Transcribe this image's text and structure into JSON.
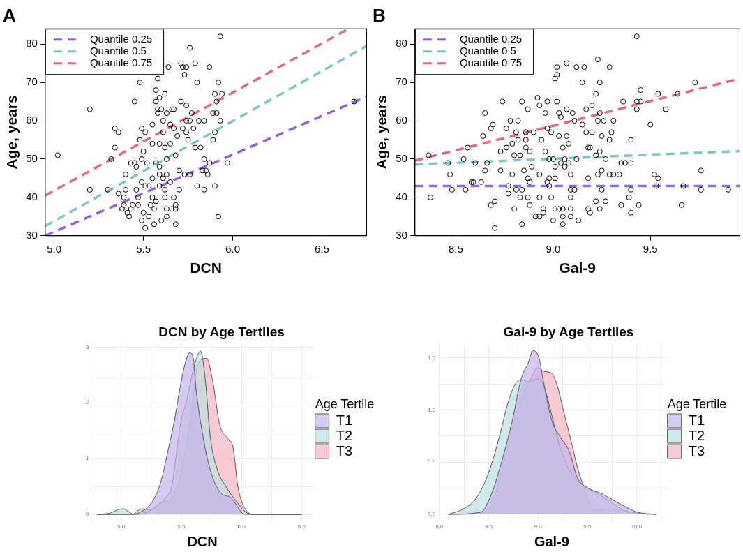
{
  "chart_data": [
    {
      "type": "scatter",
      "title": "A",
      "xlabel": "DCN",
      "ylabel": "Age, years",
      "xlim": [
        4.95,
        6.75
      ],
      "ylim": [
        30,
        84
      ],
      "xticks": [
        {
          "value": 5,
          "label": "5.0"
        },
        5.5,
        {
          "value": 6,
          "label": "6.0"
        },
        6.5
      ],
      "yticks": [
        30,
        40,
        50,
        60,
        70,
        80
      ],
      "legend": "top left",
      "series": [
        {
          "type": "scatter",
          "color": "#000000",
          "marker": "circle",
          "x": [
            5.02,
            5.2,
            5.2,
            5.3,
            5.32,
            5.34,
            5.36,
            5.34,
            5.36,
            5.39,
            5.38,
            5.39,
            5.4,
            5.41,
            5.42,
            5.43,
            5.4,
            5.43,
            5.44,
            5.45,
            5.45,
            5.46,
            5.46,
            5.47,
            5.47,
            5.48,
            5.48,
            5.49,
            5.49,
            5.49,
            5.49,
            5.5,
            5.5,
            5.51,
            5.51,
            5.51,
            5.52,
            5.53,
            5.53,
            5.54,
            5.55,
            5.55,
            5.55,
            5.55,
            5.56,
            5.56,
            5.57,
            5.57,
            5.57,
            5.57,
            5.58,
            5.58,
            5.58,
            5.59,
            5.59,
            5.59,
            5.59,
            5.59,
            5.6,
            5.6,
            5.6,
            5.61,
            5.61,
            5.61,
            5.62,
            5.62,
            5.62,
            5.62,
            5.63,
            5.63,
            5.63,
            5.63,
            5.63,
            5.64,
            5.65,
            5.65,
            5.65,
            5.66,
            5.66,
            5.67,
            5.67,
            5.67,
            5.68,
            5.68,
            5.68,
            5.68,
            5.69,
            5.7,
            5.7,
            5.71,
            5.71,
            5.72,
            5.72,
            5.73,
            5.73,
            5.74,
            5.74,
            5.74,
            5.74,
            5.75,
            5.76,
            5.76,
            5.76,
            5.77,
            5.78,
            5.79,
            5.79,
            5.8,
            5.8,
            5.81,
            5.82,
            5.83,
            5.84,
            5.84,
            5.84,
            5.85,
            5.86,
            5.87,
            5.87,
            5.89,
            5.89,
            5.9,
            5.9,
            5.9,
            5.91,
            5.91,
            5.92,
            5.92,
            5.93,
            5.93,
            5.94,
            5.97,
            6.68
          ],
          "values": [
            51,
            63,
            42,
            42,
            50,
            58,
            57,
            53,
            41,
            40,
            37,
            38,
            42,
            36,
            35,
            37,
            46,
            49,
            38,
            65,
            49,
            42,
            48,
            40,
            38,
            70,
            55,
            58,
            50,
            44,
            34,
            52,
            36,
            57,
            43,
            32,
            49,
            43,
            35,
            38,
            54,
            40,
            45,
            59,
            33,
            37,
            65,
            68,
            49,
            39,
            63,
            71,
            62,
            46,
            54,
            48,
            66,
            43,
            63,
            34,
            76,
            60,
            45,
            57,
            67,
            53,
            42,
            40,
            37,
            35,
            50,
            46,
            62,
            74,
            59,
            54,
            44,
            63,
            37,
            40,
            63,
            58,
            33,
            38,
            37,
            51,
            56,
            47,
            42,
            75,
            65,
            74,
            58,
            46,
            72,
            74,
            57,
            60,
            64,
            55,
            79,
            46,
            60,
            62,
            58,
            75,
            53,
            43,
            70,
            60,
            53,
            47,
            42,
            60,
            50,
            47,
            46,
            74,
            49,
            62,
            55,
            67,
            57,
            43,
            65,
            62,
            70,
            35,
            60,
            82,
            67,
            49,
            65
          ]
        },
        {
          "type": "line",
          "name": "Quantile 0.25",
          "color": "#8f63d6",
          "marker": "none",
          "line_style": "dashed",
          "x": [
            4.95,
            6.75
          ],
          "values": [
            30,
            66.3
          ]
        },
        {
          "type": "line",
          "name": "Quantile 0.5",
          "color": "#7fc4c9",
          "marker": "none",
          "line_style": "dashed",
          "x": [
            4.95,
            6.75
          ],
          "values": [
            32.5,
            79.5
          ]
        },
        {
          "type": "line",
          "name": "Quantile 0.75",
          "color": "#e0688a",
          "marker": "none",
          "line_style": "dashed",
          "x": [
            4.95,
            6.65
          ],
          "values": [
            40.5,
            84
          ]
        }
      ]
    },
    {
      "type": "scatter",
      "title": "B",
      "xlabel": "Gal-9",
      "ylabel": "Age, years",
      "xlim": [
        8.29,
        9.96
      ],
      "ylim": [
        30,
        84
      ],
      "xticks": [
        8.5,
        {
          "value": 9,
          "label": "9.0"
        },
        9.5
      ],
      "yticks": [
        30,
        40,
        50,
        60,
        70,
        80
      ],
      "legend": "top left",
      "series": [
        {
          "type": "scatter",
          "color": "#000000",
          "marker": "circle",
          "x": [
            8.36,
            8.37,
            8.46,
            8.47,
            8.48,
            8.54,
            8.55,
            8.56,
            8.58,
            8.59,
            8.6,
            8.63,
            8.64,
            8.65,
            8.65,
            8.66,
            8.68,
            8.68,
            8.69,
            8.7,
            8.7,
            8.73,
            8.73,
            8.74,
            8.76,
            8.76,
            8.77,
            8.77,
            8.78,
            8.79,
            8.79,
            8.8,
            8.8,
            8.81,
            8.81,
            8.82,
            8.82,
            8.83,
            8.83,
            8.84,
            8.84,
            8.84,
            8.85,
            8.86,
            8.86,
            8.86,
            8.87,
            8.87,
            8.87,
            8.88,
            8.88,
            8.88,
            8.89,
            8.9,
            8.91,
            8.92,
            8.93,
            8.93,
            8.93,
            8.93,
            8.94,
            8.95,
            8.95,
            8.96,
            8.96,
            8.97,
            8.97,
            8.97,
            8.98,
            8.98,
            8.98,
            8.99,
            8.99,
            9.0,
            9.0,
            9.01,
            9.01,
            9.01,
            9.01,
            9.02,
            9.02,
            9.02,
            9.03,
            9.03,
            9.03,
            9.04,
            9.04,
            9.05,
            9.05,
            9.05,
            9.05,
            9.06,
            9.06,
            9.07,
            9.07,
            9.07,
            9.08,
            9.08,
            9.09,
            9.09,
            9.09,
            9.09,
            9.09,
            9.1,
            9.11,
            9.11,
            9.12,
            9.12,
            9.13,
            9.15,
            9.15,
            9.16,
            9.17,
            9.17,
            9.18,
            9.18,
            9.18,
            9.19,
            9.19,
            9.2,
            9.2,
            9.22,
            9.22,
            9.22,
            9.23,
            9.23,
            9.23,
            9.24,
            9.24,
            9.24,
            9.24,
            9.25,
            9.25,
            9.25,
            9.26,
            9.27,
            9.27,
            9.29,
            9.29,
            9.29,
            9.3,
            9.31,
            9.31,
            9.34,
            9.35,
            9.35,
            9.36,
            9.37,
            9.39,
            9.4,
            9.4,
            9.4,
            9.4,
            9.43,
            9.43,
            9.43,
            9.44,
            9.45,
            9.45,
            9.5,
            9.52,
            9.53,
            9.54,
            9.54,
            9.58,
            9.64,
            9.66,
            9.67,
            9.73,
            9.76,
            9.76,
            9.9
          ],
          "values": [
            51,
            40,
            49,
            46,
            42,
            50,
            42,
            53,
            44,
            44,
            49,
            44,
            56,
            47,
            62,
            49,
            38,
            58,
            59,
            32,
            39,
            52,
            47,
            65,
            58,
            53,
            41,
            43,
            60,
            46,
            54,
            51,
            37,
            57,
            42,
            60,
            55,
            40,
            51,
            33,
            65,
            42,
            47,
            57,
            53,
            55,
            63,
            45,
            40,
            38,
            44,
            52,
            48,
            57,
            35,
            66,
            35,
            64,
            46,
            40,
            55,
            37,
            36,
            62,
            52,
            65,
            58,
            44,
            50,
            43,
            45,
            57,
            40,
            50,
            34,
            45,
            71,
            37,
            48,
            74,
            72,
            65,
            37,
            56,
            62,
            49,
            61,
            37,
            33,
            35,
            53,
            50,
            48,
            63,
            56,
            75,
            49,
            54,
            35,
            46,
            37,
            42,
            40,
            62,
            42,
            60,
            74,
            50,
            34,
            70,
            59,
            74,
            63,
            57,
            53,
            45,
            37,
            53,
            36,
            57,
            64,
            67,
            39,
            51,
            76,
            46,
            60,
            52,
            70,
            62,
            37,
            42,
            56,
            47,
            60,
            50,
            39,
            55,
            46,
            74,
            57,
            46,
            60,
            46,
            38,
            49,
            65,
            49,
            40,
            42,
            36,
            55,
            49,
            82,
            65,
            63,
            38,
            68,
            65,
            59,
            46,
            43,
            45,
            67,
            63,
            67,
            38,
            43,
            70,
            47,
            42,
            42
          ]
        },
        {
          "type": "line",
          "name": "Quantile 0.25",
          "color": "#8f63d6",
          "marker": "none",
          "line_style": "dashed",
          "x": [
            8.29,
            9.96
          ],
          "values": [
            43,
            43
          ]
        },
        {
          "type": "line",
          "name": "Quantile 0.5",
          "color": "#7fc4c9",
          "marker": "none",
          "line_style": "dashed",
          "x": [
            8.29,
            9.96
          ],
          "values": [
            48.6,
            52.1
          ]
        },
        {
          "type": "line",
          "name": "Quantile 0.75",
          "color": "#e0688a",
          "marker": "none",
          "line_style": "dashed",
          "x": [
            8.29,
            9.96
          ],
          "values": [
            49.6,
            71
          ]
        }
      ]
    },
    {
      "type": "area",
      "title": "DCN by Age Tertiles",
      "xlabel": "DCN",
      "legend_title": "Age Tertile",
      "legend": "right",
      "grid": true,
      "xlim": [
        4.75,
        6.6
      ],
      "ylim": [
        -0.13,
        3.07
      ],
      "xticks": [
        {
          "value": 4.75,
          "label": null
        },
        {
          "value": 5,
          "label": "5.0"
        },
        {
          "value": 5.25,
          "label": null
        },
        5.5,
        {
          "value": 5.75,
          "label": null
        },
        {
          "value": 6,
          "label": "6.0"
        },
        {
          "value": 6.25,
          "label": null
        },
        6.5
      ],
      "yticks": [
        0,
        {
          "value": 0.5,
          "label": null
        },
        1,
        {
          "value": 1.5,
          "label": null
        },
        2,
        {
          "value": 2.5,
          "label": null
        },
        3
      ],
      "series": [
        {
          "name": "T1",
          "color": "#c6b3ea",
          "x": [
            4.8,
            5.09,
            5.17,
            5.25,
            5.31,
            5.35,
            5.39,
            5.44,
            5.48,
            5.52,
            5.57,
            5.6,
            5.62,
            5.68,
            5.74,
            5.82,
            5.91,
            6.03,
            6.5
          ],
          "values": [
            0,
            0,
            0.05,
            0.2,
            0.45,
            0.75,
            1.15,
            1.65,
            2.15,
            2.6,
            2.9,
            2.8,
            2.3,
            1.4,
            0.8,
            0.4,
            0.3,
            0,
            0
          ]
        },
        {
          "name": "T2",
          "color": "#bfdfe2",
          "x": [
            4.8,
            4.9,
            5.01,
            5.11,
            5.21,
            5.29,
            5.37,
            5.42,
            5.46,
            5.5,
            5.54,
            5.6,
            5.66,
            5.7,
            5.74,
            5.8,
            5.87,
            5.95,
            6.03,
            6.09,
            6.5
          ],
          "values": [
            0,
            0.02,
            0.1,
            0,
            0.03,
            0.15,
            0.3,
            0.5,
            1.1,
            1.7,
            2.0,
            2.6,
            2.93,
            2.4,
            1.4,
            0.8,
            0.5,
            0.25,
            0.05,
            0,
            0
          ]
        },
        {
          "name": "T3",
          "color": "#f3b3c2",
          "x": [
            4.8,
            5.09,
            5.17,
            5.25,
            5.33,
            5.42,
            5.5,
            5.58,
            5.64,
            5.71,
            5.76,
            5.82,
            5.89,
            5.93,
            5.97,
            6.03,
            6.11,
            6.5
          ],
          "values": [
            0,
            0,
            0.1,
            0.08,
            0.2,
            0.3,
            0.75,
            1.8,
            2.7,
            2.8,
            2.4,
            1.6,
            1.35,
            1.2,
            0.5,
            0.1,
            0,
            0
          ]
        }
      ]
    },
    {
      "type": "area",
      "title": "Gal-9 by Age Tertiles",
      "xlabel": "Gal-9",
      "legend_title": "Age Tertile",
      "legend": "right",
      "grid": true,
      "xlim": [
        7.98,
        10.3
      ],
      "ylim": [
        -0.07,
        1.64
      ],
      "xticks": [
        {
          "value": 8,
          "label": "8.0"
        },
        {
          "value": 8.25,
          "label": null
        },
        8.5,
        {
          "value": 8.75,
          "label": null
        },
        {
          "value": 9,
          "label": "9.0"
        },
        {
          "value": 9.25,
          "label": null
        },
        9.5,
        {
          "value": 9.75,
          "label": null
        },
        {
          "value": 10,
          "label": "10.0"
        },
        {
          "value": 10.25,
          "label": null
        }
      ],
      "yticks": [
        {
          "value": 0,
          "label": "0.0"
        },
        {
          "value": 0.25,
          "label": null
        },
        0.5,
        {
          "value": 0.75,
          "label": null
        },
        {
          "value": 1,
          "label": "1.0"
        },
        {
          "value": 1.25,
          "label": null
        },
        1.5
      ],
      "series": [
        {
          "name": "T1",
          "color": "#c6b3ea",
          "x": [
            8.09,
            8.42,
            8.53,
            8.63,
            8.74,
            8.83,
            8.9,
            8.95,
            9.01,
            9.06,
            9.14,
            9.22,
            9.32,
            9.4,
            9.51,
            9.64,
            9.83,
            10.01,
            10.2
          ],
          "values": [
            0,
            0.02,
            0.2,
            0.5,
            0.9,
            1.3,
            1.45,
            1.57,
            1.5,
            1.25,
            0.9,
            0.75,
            0.6,
            0.35,
            0.25,
            0.2,
            0.1,
            0.02,
            0
          ]
        },
        {
          "name": "T2",
          "color": "#bfdfe2",
          "x": [
            8.09,
            8.24,
            8.37,
            8.5,
            8.61,
            8.69,
            8.77,
            8.83,
            8.9,
            9.01,
            9.07,
            9.14,
            9.22,
            9.32,
            9.43,
            9.56,
            9.69,
            9.85,
            10.01,
            10.2
          ],
          "values": [
            0,
            0.05,
            0.15,
            0.4,
            0.75,
            1.05,
            1.25,
            1.29,
            1.27,
            1.3,
            1.2,
            0.95,
            0.65,
            0.42,
            0.3,
            0.22,
            0.15,
            0.05,
            0.01,
            0
          ]
        },
        {
          "name": "T3",
          "color": "#f3b3c2",
          "x": [
            8.09,
            8.42,
            8.53,
            8.63,
            8.74,
            8.85,
            8.93,
            8.99,
            9.06,
            9.14,
            9.19,
            9.27,
            9.35,
            9.4,
            9.48,
            9.53,
            9.61,
            9.72,
            9.83,
            9.96,
            10.2
          ],
          "values": [
            0,
            0.01,
            0.1,
            0.4,
            0.85,
            1.15,
            1.3,
            1.4,
            1.37,
            1.35,
            1.25,
            0.95,
            0.65,
            0.45,
            0.22,
            0.08,
            0.04,
            0.05,
            0.04,
            0.01,
            0
          ]
        }
      ]
    }
  ]
}
